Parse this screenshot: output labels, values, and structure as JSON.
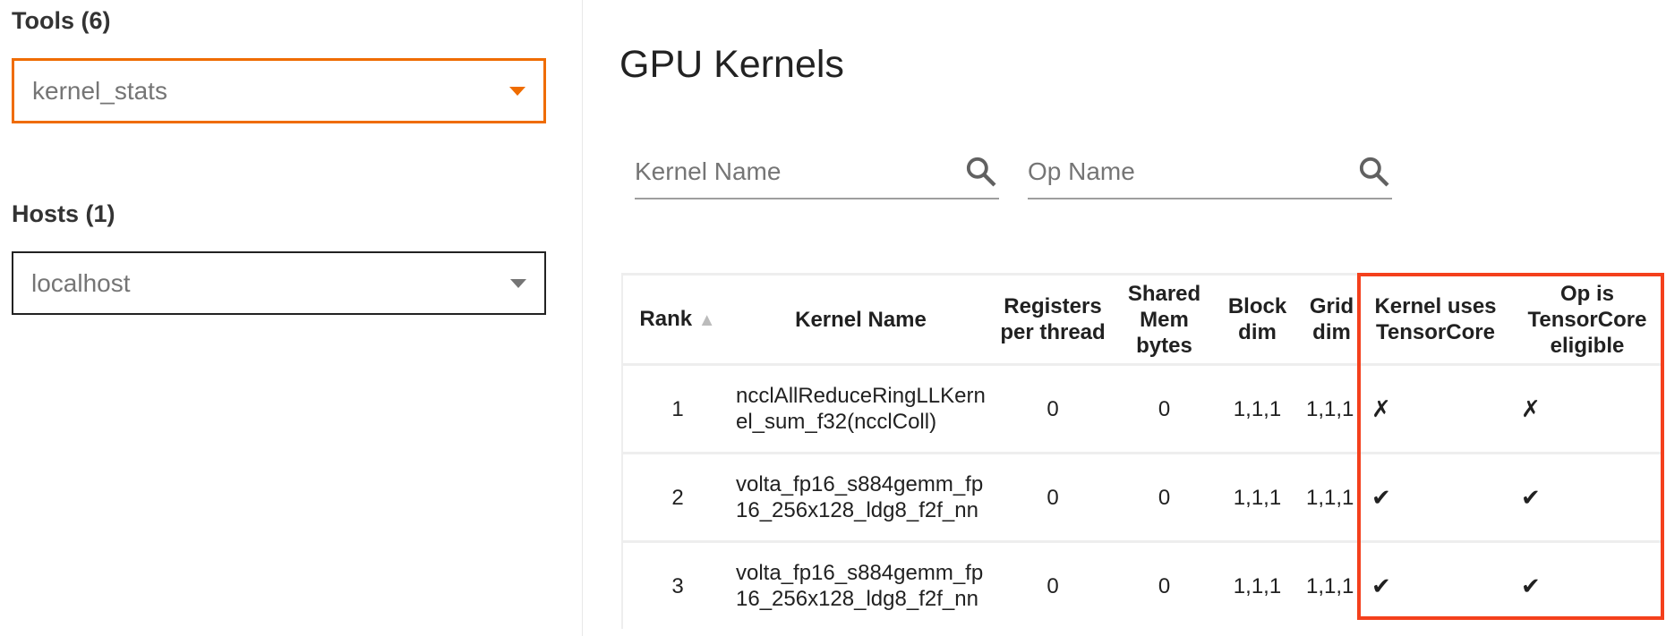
{
  "sidebar": {
    "tools_label": "Tools (6)",
    "tool_selected": "kernel_stats",
    "hosts_label": "Hosts (1)",
    "host_selected": "localhost"
  },
  "main": {
    "title": "GPU Kernels",
    "kernel_search_placeholder": "Kernel Name",
    "op_search_placeholder": "Op Name",
    "table": {
      "columns": [
        "Rank",
        "Kernel Name",
        "Registers per thread",
        "Shared Mem bytes",
        "Block dim",
        "Grid dim",
        "Kernel uses TensorCore",
        "Op is TensorCore eligible"
      ],
      "sort": {
        "column": "Rank",
        "direction": "ascending"
      },
      "rows": [
        [
          "1",
          "ncclAllReduceRingLLKernel_sum_f32(ncclColl)",
          "0",
          "0",
          "1,1,1",
          "1,1,1",
          "✗",
          "✗"
        ],
        [
          "2",
          "volta_fp16_s884gemm_fp16_256x128_ldg8_f2f_nn",
          "0",
          "0",
          "1,1,1",
          "1,1,1",
          "✔",
          "✔"
        ],
        [
          "3",
          "volta_fp16_s884gemm_fp16_256x128_ldg8_f2f_nn",
          "0",
          "0",
          "1,1,1",
          "1,1,1",
          "✔",
          "✔"
        ]
      ]
    },
    "highlight_color": "#f4401c",
    "accent_color": "#ef6c00"
  }
}
